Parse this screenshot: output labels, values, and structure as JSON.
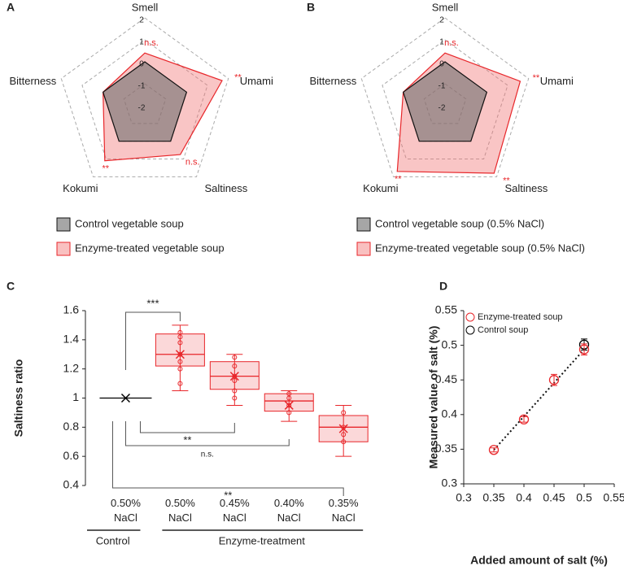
{
  "chart_data": [
    {
      "type": "radar",
      "label": "A",
      "categories": [
        "Smell",
        "Umami",
        "Saltiness",
        "Kokumi",
        "Bitterness"
      ],
      "rlim": [
        -2,
        2
      ],
      "rticks": [
        -2,
        -1,
        0,
        1,
        2
      ],
      "series": [
        {
          "name": "Control vegetable soup",
          "color": "#808080",
          "values": [
            0,
            0,
            0,
            0,
            0
          ]
        },
        {
          "name": "Enzyme-treated vegetable soup",
          "color": "#e8262a",
          "values": [
            0.4,
            1.7,
            0.75,
            1.1,
            0
          ]
        }
      ],
      "significance": [
        "n.s.",
        "**",
        "n.s.",
        "**",
        null
      ]
    },
    {
      "type": "radar",
      "label": "B",
      "categories": [
        "Smell",
        "Umami",
        "Saltiness",
        "Kokumi",
        "Bitterness"
      ],
      "rlim": [
        -2,
        2
      ],
      "rticks": [
        -2,
        -1,
        0,
        1,
        2
      ],
      "series": [
        {
          "name": "Control vegetable soup (0.5% NaCl)",
          "color": "#808080",
          "values": [
            0,
            0,
            0,
            0,
            0
          ]
        },
        {
          "name": "Enzyme-treated vegetable soup (0.5% NaCl)",
          "color": "#e8262a",
          "values": [
            0.4,
            1.6,
            1.8,
            1.7,
            0
          ]
        }
      ],
      "significance": [
        "n.s.",
        "**",
        "**",
        "**",
        null
      ]
    },
    {
      "type": "box",
      "label": "C",
      "ylabel": "Saltiness ratio",
      "categories": [
        "0.50% NaCl",
        "0.50% NaCl",
        "0.45% NaCl",
        "0.40% NaCl",
        "0.35% NaCl"
      ],
      "groups": [
        "Control",
        "Enzyme-treatment"
      ],
      "ylim": [
        0.4,
        1.6
      ],
      "yticks": [
        0.4,
        0.6,
        0.8,
        1,
        1.2,
        1.4,
        1.6
      ],
      "boxes": [
        {
          "color": "#000000",
          "min": 1,
          "q1": 1,
          "median": 1,
          "q3": 1,
          "max": 1,
          "mean": 1,
          "points": []
        },
        {
          "color": "#e8262a",
          "min": 1.05,
          "q1": 1.22,
          "median": 1.3,
          "q3": 1.44,
          "max": 1.5,
          "mean": 1.3,
          "points": [
            1.45,
            1.42,
            1.38,
            1.3,
            1.25,
            1.2,
            1.1
          ]
        },
        {
          "color": "#e8262a",
          "min": 0.95,
          "q1": 1.06,
          "median": 1.15,
          "q3": 1.25,
          "max": 1.3,
          "mean": 1.15,
          "points": [
            1.28,
            1.22,
            1.15,
            1.12,
            1.05,
            1.0
          ]
        },
        {
          "color": "#e8262a",
          "min": 0.84,
          "q1": 0.91,
          "median": 0.98,
          "q3": 1.03,
          "max": 1.05,
          "mean": 0.95,
          "points": [
            1.03,
            1.0,
            0.95,
            0.9
          ]
        },
        {
          "color": "#e8262a",
          "min": 0.6,
          "q1": 0.7,
          "median": 0.8,
          "q3": 0.88,
          "max": 0.95,
          "mean": 0.79,
          "points": [
            0.9,
            0.8,
            0.75,
            0.7
          ]
        }
      ],
      "significance": [
        "***",
        "**",
        "n.s.",
        "**"
      ]
    },
    {
      "type": "scatter",
      "label": "D",
      "xlabel": "Added amount of salt (%)",
      "ylabel": "Measured value of salt (%)",
      "xlim": [
        0.3,
        0.55
      ],
      "xticks": [
        0.3,
        0.35,
        0.4,
        0.45,
        0.5,
        0.55
      ],
      "ylim": [
        0.3,
        0.55
      ],
      "yticks": [
        0.3,
        0.35,
        0.4,
        0.45,
        0.5,
        0.55
      ],
      "series": [
        {
          "name": "Enzyme-treated soup",
          "color": "#e8262a",
          "x": [
            0.35,
            0.4,
            0.45,
            0.5
          ],
          "values": [
            0.349,
            0.393,
            0.45,
            0.494
          ],
          "errors": [
            0.003,
            0.004,
            0.008,
            0.008
          ]
        },
        {
          "name": "Control soup",
          "color": "#000000",
          "x": [
            0.5
          ],
          "values": [
            0.501
          ],
          "errors": [
            0.008
          ]
        }
      ]
    }
  ]
}
